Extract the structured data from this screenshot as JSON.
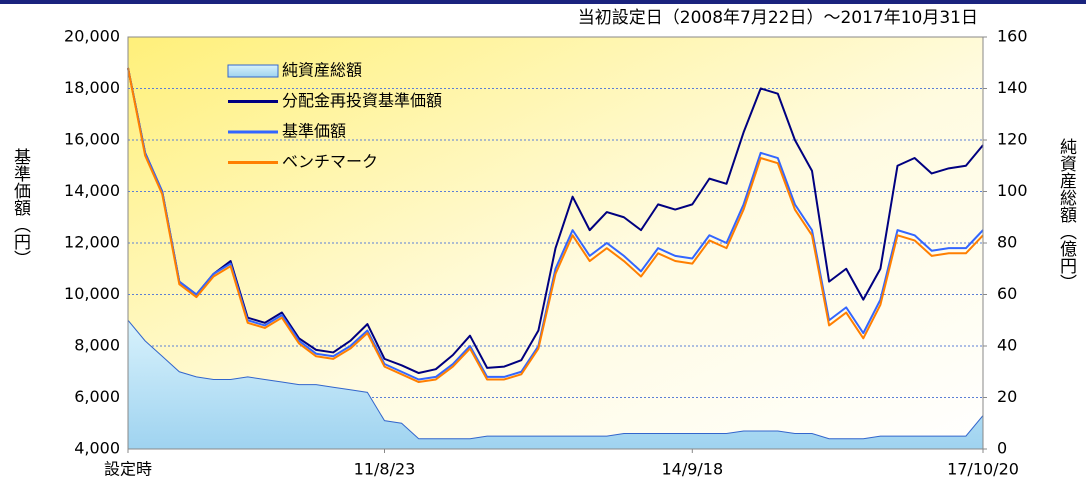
{
  "chart_data": {
    "type": "line",
    "title": "当初設定日（2008年7月22日）～2017年10月31日",
    "ylabel": "基準価額（円）",
    "y2label": "純資産総額（億円）",
    "x": [
      0,
      2,
      4,
      6,
      8,
      10,
      12,
      14,
      16,
      18,
      20,
      22,
      24,
      26,
      28,
      30,
      32,
      34,
      36,
      38,
      40,
      42,
      44,
      46,
      48,
      50,
      52,
      54,
      56,
      58,
      60,
      62,
      64,
      66,
      68,
      70,
      72,
      74,
      76,
      78,
      80,
      82,
      84,
      86,
      88,
      90,
      92,
      94,
      96,
      98,
      100
    ],
    "xlim": [
      0,
      100
    ],
    "xticks": [
      {
        "value": 0,
        "label": "設定時"
      },
      {
        "value": 30,
        "label": "11/8/23"
      },
      {
        "value": 66,
        "label": "14/9/18"
      },
      {
        "value": 100,
        "label": "17/10/20"
      }
    ],
    "ylim": [
      4000,
      20000
    ],
    "yticks": [
      {
        "value": 4000,
        "label": "4,000"
      },
      {
        "value": 6000,
        "label": "6,000"
      },
      {
        "value": 8000,
        "label": "8,000"
      },
      {
        "value": 10000,
        "label": "10,000"
      },
      {
        "value": 12000,
        "label": "12,000"
      },
      {
        "value": 14000,
        "label": "14,000"
      },
      {
        "value": 16000,
        "label": "16,000"
      },
      {
        "value": 18000,
        "label": "18,000"
      },
      {
        "value": 20000,
        "label": "20,000"
      }
    ],
    "y2lim": [
      0,
      160
    ],
    "y2ticks": [
      0,
      20,
      40,
      60,
      80,
      100,
      120,
      140,
      160
    ],
    "grid": true,
    "legend": "upper left",
    "series": [
      {
        "name": "純資産総額",
        "type": "area",
        "axis": "y2",
        "color": "#bfe6f8",
        "values": [
          50,
          42,
          36,
          30,
          28,
          27,
          27,
          28,
          27,
          26,
          25,
          25,
          24,
          23,
          22,
          11,
          10,
          4,
          4,
          4,
          4,
          5,
          5,
          5,
          5,
          5,
          5,
          5,
          5,
          6,
          6,
          6,
          6,
          6,
          6,
          6,
          7,
          7,
          7,
          6,
          6,
          4,
          4,
          4,
          5,
          5,
          5,
          5,
          5,
          5,
          13
        ]
      },
      {
        "name": "分配金再投資基準価額",
        "color": "#000080",
        "values": [
          18800,
          15500,
          14000,
          10500,
          10000,
          10800,
          11300,
          9100,
          8900,
          9300,
          8300,
          7850,
          7750,
          8200,
          8850,
          7500,
          7250,
          6950,
          7100,
          7650,
          8400,
          7150,
          7200,
          7450,
          8600,
          11800,
          13800,
          12500,
          13200,
          13000,
          12500,
          13500,
          13300,
          13500,
          14500,
          14300,
          16300,
          18000,
          17800,
          16000,
          14800,
          10500,
          11000,
          9800,
          11000,
          15000,
          15300,
          14700,
          14900,
          15000,
          15800
        ]
      },
      {
        "name": "基準価額",
        "color": "#3366ff",
        "values": [
          18800,
          15500,
          14000,
          10500,
          10000,
          10800,
          11200,
          9000,
          8800,
          9200,
          8200,
          7700,
          7600,
          8000,
          8600,
          7300,
          7000,
          6700,
          6800,
          7300,
          8000,
          6800,
          6800,
          7000,
          8000,
          11000,
          12500,
          11500,
          12000,
          11500,
          10900,
          11800,
          11500,
          11400,
          12300,
          12000,
          13500,
          15500,
          15300,
          13500,
          12500,
          9000,
          9500,
          8500,
          9800,
          12500,
          12300,
          11700,
          11800,
          11800,
          12500
        ]
      },
      {
        "name": "ベンチマーク",
        "color": "#ff7f00",
        "values": [
          18800,
          15400,
          13900,
          10400,
          9900,
          10700,
          11100,
          8900,
          8700,
          9100,
          8100,
          7600,
          7500,
          7900,
          8500,
          7200,
          6900,
          6600,
          6700,
          7200,
          7900,
          6700,
          6700,
          6900,
          7900,
          10800,
          12300,
          11300,
          11800,
          11300,
          10700,
          11600,
          11300,
          11200,
          12100,
          11800,
          13300,
          15300,
          15100,
          13300,
          12300,
          8800,
          9300,
          8300,
          9600,
          12300,
          12100,
          11500,
          11600,
          11600,
          12300
        ]
      }
    ]
  }
}
